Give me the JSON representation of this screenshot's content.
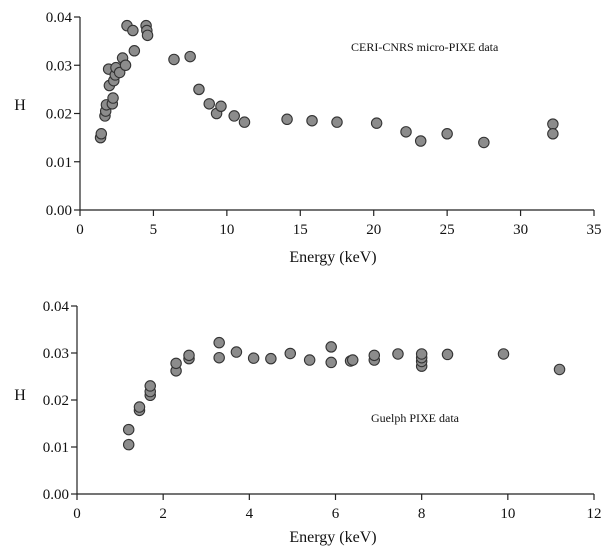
{
  "chart_data": [
    {
      "type": "scatter",
      "annotation": "CERI-CNRS micro-PIXE data",
      "xlabel": "Energy (keV)",
      "ylabel": "H",
      "xlim": [
        0,
        35
      ],
      "ylim": [
        0,
        0.04
      ],
      "x_ticks": [
        "0",
        "5",
        "10",
        "15",
        "20",
        "25",
        "30",
        "35"
      ],
      "y_ticks": [
        "0.00",
        "0.01",
        "0.02",
        "0.03",
        "0.04"
      ],
      "grid": false,
      "marker_color": "#8c8c8c",
      "points": [
        {
          "x": 1.4,
          "y": 0.015
        },
        {
          "x": 1.45,
          "y": 0.0158
        },
        {
          "x": 1.7,
          "y": 0.0195
        },
        {
          "x": 1.75,
          "y": 0.0205
        },
        {
          "x": 1.8,
          "y": 0.0218
        },
        {
          "x": 1.95,
          "y": 0.0292
        },
        {
          "x": 2.0,
          "y": 0.0258
        },
        {
          "x": 2.2,
          "y": 0.022
        },
        {
          "x": 2.25,
          "y": 0.0232
        },
        {
          "x": 2.3,
          "y": 0.0268
        },
        {
          "x": 2.4,
          "y": 0.028
        },
        {
          "x": 2.45,
          "y": 0.0295
        },
        {
          "x": 2.7,
          "y": 0.0285
        },
        {
          "x": 2.9,
          "y": 0.0315
        },
        {
          "x": 3.1,
          "y": 0.03
        },
        {
          "x": 3.2,
          "y": 0.0382
        },
        {
          "x": 3.6,
          "y": 0.0372
        },
        {
          "x": 3.7,
          "y": 0.033
        },
        {
          "x": 4.5,
          "y": 0.0382
        },
        {
          "x": 4.55,
          "y": 0.0372
        },
        {
          "x": 4.6,
          "y": 0.0362
        },
        {
          "x": 6.4,
          "y": 0.0312
        },
        {
          "x": 7.5,
          "y": 0.0318
        },
        {
          "x": 8.1,
          "y": 0.025
        },
        {
          "x": 8.8,
          "y": 0.022
        },
        {
          "x": 9.3,
          "y": 0.02
        },
        {
          "x": 9.6,
          "y": 0.0215
        },
        {
          "x": 10.5,
          "y": 0.0195
        },
        {
          "x": 11.2,
          "y": 0.0182
        },
        {
          "x": 14.1,
          "y": 0.0188
        },
        {
          "x": 15.8,
          "y": 0.0185
        },
        {
          "x": 17.5,
          "y": 0.0182
        },
        {
          "x": 20.2,
          "y": 0.018
        },
        {
          "x": 22.2,
          "y": 0.0162
        },
        {
          "x": 23.2,
          "y": 0.0143
        },
        {
          "x": 25.0,
          "y": 0.0158
        },
        {
          "x": 27.5,
          "y": 0.014
        },
        {
          "x": 32.2,
          "y": 0.0178
        },
        {
          "x": 32.2,
          "y": 0.0158
        }
      ]
    },
    {
      "type": "scatter",
      "annotation": "Guelph PIXE data",
      "xlabel": "Energy (keV)",
      "ylabel": "H",
      "xlim": [
        0,
        12
      ],
      "ylim": [
        0,
        0.04
      ],
      "x_ticks": [
        "0",
        "2",
        "4",
        "6",
        "8",
        "10",
        "12"
      ],
      "y_ticks": [
        "0.00",
        "0.01",
        "0.02",
        "0.03",
        "0.04"
      ],
      "grid": false,
      "marker_color": "#8c8c8c",
      "points": [
        {
          "x": 1.2,
          "y": 0.0105
        },
        {
          "x": 1.2,
          "y": 0.0137
        },
        {
          "x": 1.45,
          "y": 0.0178
        },
        {
          "x": 1.45,
          "y": 0.0185
        },
        {
          "x": 1.7,
          "y": 0.021
        },
        {
          "x": 1.7,
          "y": 0.0218
        },
        {
          "x": 1.7,
          "y": 0.023
        },
        {
          "x": 2.3,
          "y": 0.0262
        },
        {
          "x": 2.3,
          "y": 0.0278
        },
        {
          "x": 2.6,
          "y": 0.0288
        },
        {
          "x": 2.6,
          "y": 0.0295
        },
        {
          "x": 3.3,
          "y": 0.029
        },
        {
          "x": 3.3,
          "y": 0.0322
        },
        {
          "x": 3.7,
          "y": 0.0302
        },
        {
          "x": 4.1,
          "y": 0.0289
        },
        {
          "x": 4.5,
          "y": 0.0288
        },
        {
          "x": 4.95,
          "y": 0.0299
        },
        {
          "x": 5.4,
          "y": 0.0285
        },
        {
          "x": 5.9,
          "y": 0.028
        },
        {
          "x": 5.9,
          "y": 0.0313
        },
        {
          "x": 6.35,
          "y": 0.0283
        },
        {
          "x": 6.4,
          "y": 0.0285
        },
        {
          "x": 6.9,
          "y": 0.0285
        },
        {
          "x": 6.9,
          "y": 0.0295
        },
        {
          "x": 7.45,
          "y": 0.0298
        },
        {
          "x": 8.0,
          "y": 0.0272
        },
        {
          "x": 8.0,
          "y": 0.0282
        },
        {
          "x": 8.0,
          "y": 0.029
        },
        {
          "x": 8.0,
          "y": 0.0298
        },
        {
          "x": 8.6,
          "y": 0.0297
        },
        {
          "x": 9.9,
          "y": 0.0298
        },
        {
          "x": 11.2,
          "y": 0.0265
        }
      ]
    }
  ]
}
